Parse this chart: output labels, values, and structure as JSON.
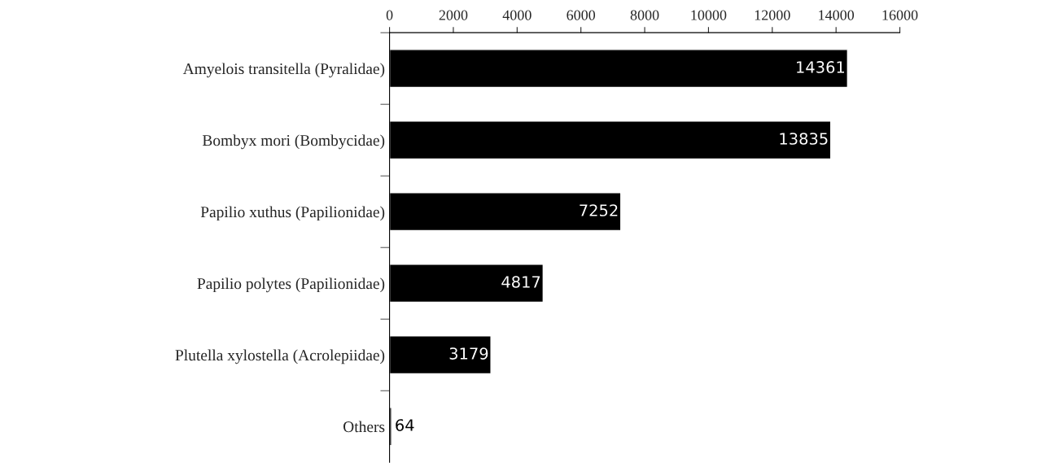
{
  "chart_data": {
    "type": "bar",
    "orientation": "horizontal",
    "categories": [
      "Amyelois transitella (Pyralidae)",
      "Bombyx mori (Bombycidae)",
      "Papilio xuthus (Papilionidae)",
      "Papilio polytes (Papilionidae)",
      "Plutella xylostella (Acrolepiidae)",
      "Others"
    ],
    "values": [
      14361,
      13835,
      7252,
      4817,
      3179,
      64
    ],
    "color": "#000000",
    "xlim": [
      0,
      16000
    ],
    "xticks": [
      0,
      2000,
      4000,
      6000,
      8000,
      10000,
      12000,
      14000,
      16000
    ],
    "data_labels": true,
    "grid": false
  }
}
